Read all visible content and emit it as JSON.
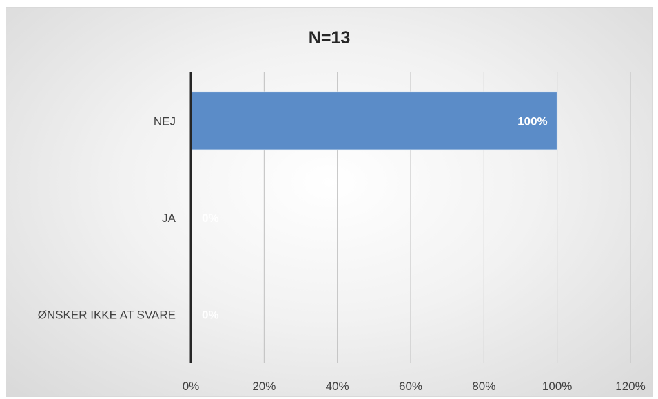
{
  "chart_data": {
    "type": "bar",
    "orientation": "horizontal",
    "title": "N=13",
    "categories": [
      "NEJ",
      "JA",
      "ØNSKER IKKE AT SVARE"
    ],
    "values": [
      100,
      0,
      0
    ],
    "data_labels": [
      "100%",
      "0%",
      "0%"
    ],
    "x_ticks": [
      "0%",
      "20%",
      "40%",
      "60%",
      "80%",
      "100%",
      "120%"
    ],
    "xlim": [
      0,
      120
    ],
    "xlabel": "",
    "ylabel": "",
    "grid": "vertical",
    "legend": "none",
    "bar_color": "#5b8cc8"
  }
}
